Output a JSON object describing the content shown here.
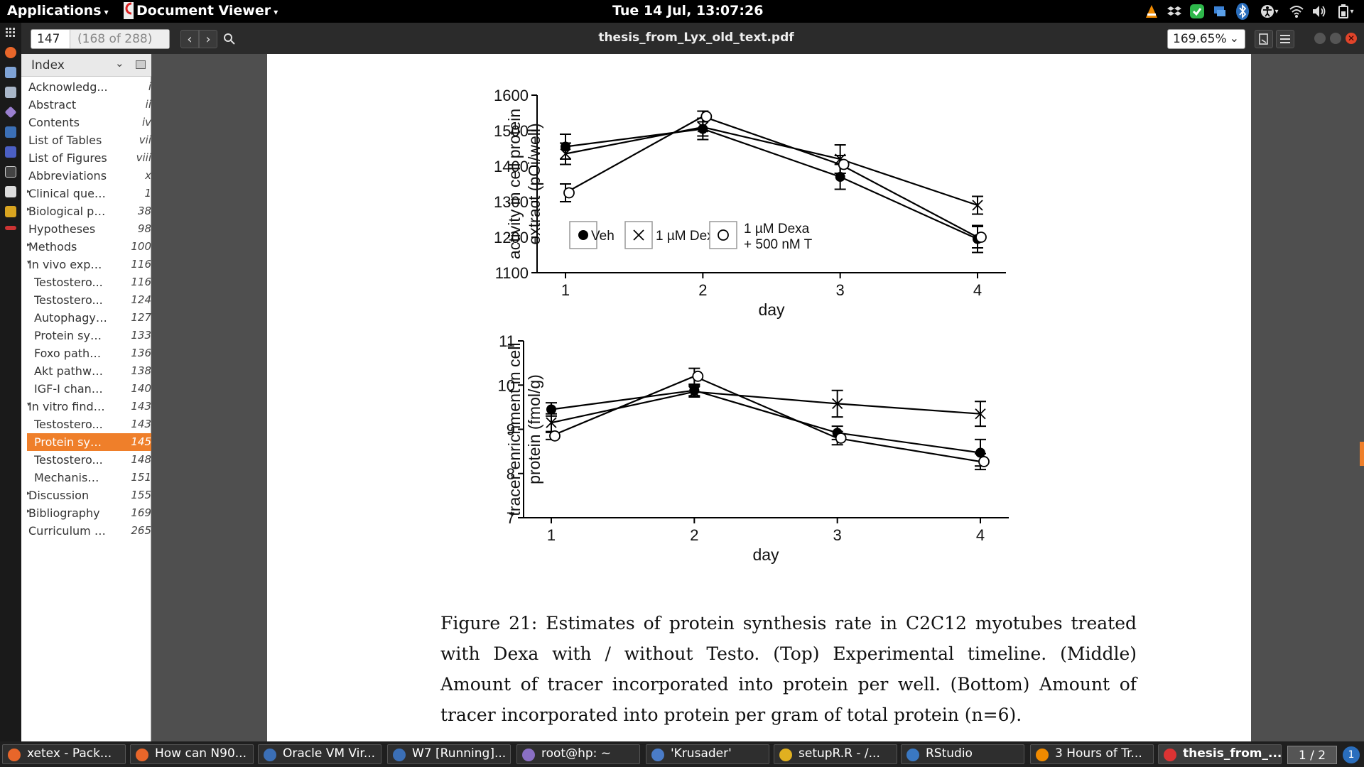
{
  "top_panel": {
    "applications": "Applications",
    "app_name": "Document Viewer",
    "clock": "Tue 14 Jul, 13:07:26"
  },
  "toolbar": {
    "page_number": "147",
    "page_of": "(168 of 288)",
    "doc_title": "thesis_from_Lyx_old_text.pdf",
    "zoom": "169.65%"
  },
  "sidebar": {
    "header": "Index",
    "items": [
      {
        "title": "Acknowledg...",
        "page": "i",
        "indent": 0,
        "exp": ""
      },
      {
        "title": "Abstract",
        "page": "ii",
        "indent": 0,
        "exp": ""
      },
      {
        "title": "Contents",
        "page": "iv",
        "indent": 0,
        "exp": ""
      },
      {
        "title": "List of Tables",
        "page": "vii",
        "indent": 0,
        "exp": ""
      },
      {
        "title": "List of Figures",
        "page": "viii",
        "indent": 0,
        "exp": ""
      },
      {
        "title": "Abbreviations",
        "page": "x",
        "indent": 0,
        "exp": ""
      },
      {
        "title": "Clinical quest...",
        "page": "1",
        "indent": 0,
        "exp": "▸"
      },
      {
        "title": "Biological pr...",
        "page": "38",
        "indent": 0,
        "exp": "▸"
      },
      {
        "title": "Hypotheses",
        "page": "98",
        "indent": 0,
        "exp": ""
      },
      {
        "title": "Methods",
        "page": "100",
        "indent": 0,
        "exp": "▸"
      },
      {
        "title": "In vivo experi...",
        "page": "116",
        "indent": 0,
        "exp": "▾"
      },
      {
        "title": "Testostero...",
        "page": "116",
        "indent": 1,
        "exp": ""
      },
      {
        "title": "Testostero...",
        "page": "124",
        "indent": 1,
        "exp": ""
      },
      {
        "title": "Autophagy ...",
        "page": "127",
        "indent": 1,
        "exp": ""
      },
      {
        "title": "Protein synt...",
        "page": "133",
        "indent": 1,
        "exp": ""
      },
      {
        "title": "Foxo pathw...",
        "page": "136",
        "indent": 1,
        "exp": ""
      },
      {
        "title": "Akt pathwa...",
        "page": "138",
        "indent": 1,
        "exp": ""
      },
      {
        "title": "IGF-I chang...",
        "page": "140",
        "indent": 1,
        "exp": ""
      },
      {
        "title": "In vitro findings",
        "page": "143",
        "indent": 0,
        "exp": "▾"
      },
      {
        "title": "Testostero...",
        "page": "143",
        "indent": 1,
        "exp": ""
      },
      {
        "title": "Protein synt...",
        "page": "145",
        "indent": 1,
        "exp": "",
        "selected": true
      },
      {
        "title": "Testostero...",
        "page": "148",
        "indent": 1,
        "exp": ""
      },
      {
        "title": "Mechanism...",
        "page": "151",
        "indent": 1,
        "exp": ""
      },
      {
        "title": "Discussion",
        "page": "155",
        "indent": 0,
        "exp": "▸"
      },
      {
        "title": "Bibliography",
        "page": "169",
        "indent": 0,
        "exp": "▸"
      },
      {
        "title": "Curriculum vi...",
        "page": "265",
        "indent": 0,
        "exp": ""
      }
    ]
  },
  "chart_data": [
    {
      "type": "line",
      "xlabel": "day",
      "ylabel_line1": "activity in cell protein",
      "ylabel_line2": "extract (pCi/well)",
      "x": [
        1,
        2,
        3,
        4
      ],
      "ylim": [
        1100,
        1600
      ],
      "yticks": [
        1100,
        1200,
        1300,
        1400,
        1500,
        1600
      ],
      "series": [
        {
          "name": "Veh",
          "marker": "filled-circle",
          "values": [
            1455,
            1505,
            1370,
            1195
          ],
          "err": [
            35,
            30,
            35,
            38
          ]
        },
        {
          "name": "1 µM Dexa",
          "marker": "cross",
          "values": [
            1435,
            1510,
            1420,
            1290
          ],
          "err": [
            30,
            25,
            40,
            25
          ]
        },
        {
          "name": "1 µM Dexa + 500 nM T",
          "legend_line1": "1 µM Dexa",
          "legend_line2": "+ 500 nM T",
          "marker": "open-circle",
          "values": [
            1325,
            1540,
            1405,
            1200
          ],
          "err": [
            25,
            15,
            25,
            30
          ]
        }
      ]
    },
    {
      "type": "line",
      "xlabel": "day",
      "ylabel_line1": "tracer enrichment in cell",
      "ylabel_line2": "protein (fmol/g)",
      "x": [
        1,
        2,
        3,
        4
      ],
      "ylim": [
        7,
        11
      ],
      "yticks": [
        7,
        8,
        9,
        10,
        11
      ],
      "series": [
        {
          "name": "Veh",
          "marker": "filled-circle",
          "values": [
            9.45,
            9.88,
            8.92,
            8.47
          ],
          "err": [
            0.15,
            0.12,
            0.15,
            0.3
          ]
        },
        {
          "name": "1 µM Dexa",
          "marker": "cross",
          "values": [
            9.15,
            9.85,
            9.58,
            9.35
          ],
          "err": [
            0.2,
            0.12,
            0.3,
            0.28
          ]
        },
        {
          "name": "1 µM Dexa + 500 nM T",
          "marker": "open-circle",
          "values": [
            8.85,
            10.2,
            8.8,
            8.27
          ],
          "err": [
            0.08,
            0.18,
            0.15,
            0.18
          ]
        }
      ]
    }
  ],
  "caption": "Figure 21: Estimates of protein synthesis rate in C2C12 myotubes treated with Dexa with / without Testo. (Top) Experimental timeline. (Middle) Amount of tracer incorporated into protein per well. (Bottom) Amount of tracer incorporated into protein per gram of total protein (n=6).",
  "taskbar": {
    "tasks": [
      {
        "label": "xetex - Pack...",
        "color": "#e8662a"
      },
      {
        "label": "How can N90...",
        "color": "#e8662a"
      },
      {
        "label": "Oracle VM Vir...",
        "color": "#3b6fb6"
      },
      {
        "label": "W7 [Running]...",
        "color": "#3b6fb6"
      },
      {
        "label": "root@hp: ~",
        "color": "#8a6fc4"
      },
      {
        "label": "'Krusader'",
        "color": "#4a7cc8"
      },
      {
        "label": "setupR.R - /...",
        "color": "#e0b020"
      },
      {
        "label": "RStudio",
        "color": "#3a78c2"
      },
      {
        "label": "3 Hours of Tr...",
        "color": "#f08a00"
      },
      {
        "label": "thesis_from_...",
        "color": "#d33"
      }
    ],
    "pager": "1 / 2",
    "notif_count": "1"
  }
}
